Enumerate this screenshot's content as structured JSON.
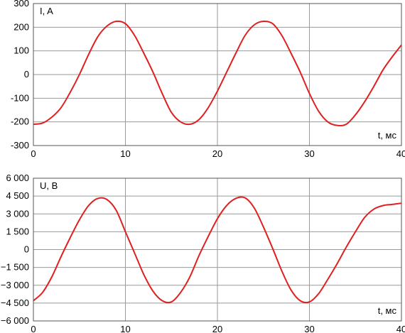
{
  "chart_data": [
    {
      "type": "line",
      "ylabel": "I, A",
      "xlabel": "t, мс",
      "xlim": [
        0,
        40
      ],
      "ylim": [
        -300,
        300
      ],
      "x_ticks": [
        0,
        10,
        20,
        30,
        40
      ],
      "x_tick_labels": [
        "0",
        "10",
        "20",
        "30",
        "40"
      ],
      "y_ticks": [
        300,
        200,
        100,
        0,
        -100,
        -200,
        -300
      ],
      "y_tick_labels": [
        "300",
        "200",
        "100",
        "0",
        "-100",
        "-200",
        "-300"
      ],
      "grid": true,
      "line_color": "#e02020",
      "series": [
        {
          "x": [
            0,
            1,
            2,
            3,
            4,
            5,
            6,
            7,
            8,
            9,
            10,
            11,
            12,
            13,
            14,
            15,
            16,
            17,
            18,
            19,
            20,
            21,
            22,
            23,
            24,
            25,
            26,
            27,
            28,
            29,
            30,
            31,
            32,
            33,
            34,
            35,
            36,
            37,
            38,
            39,
            40
          ],
          "values": [
            -210,
            -205,
            -180,
            -140,
            -75,
            0,
            85,
            160,
            205,
            225,
            215,
            165,
            90,
            10,
            -80,
            -160,
            -200,
            -210,
            -190,
            -140,
            -70,
            10,
            90,
            165,
            210,
            225,
            215,
            165,
            90,
            10,
            -80,
            -155,
            -200,
            -215,
            -210,
            -170,
            -115,
            -50,
            20,
            75,
            125
          ]
        }
      ]
    },
    {
      "type": "line",
      "ylabel": "U, В",
      "xlabel": "t, мс",
      "xlim": [
        0,
        40
      ],
      "ylim": [
        -6000,
        6000
      ],
      "x_ticks": [
        0,
        10,
        20,
        30,
        40
      ],
      "x_tick_labels": [
        "0",
        "10",
        "20",
        "30",
        "40"
      ],
      "y_ticks": [
        6000,
        4500,
        3000,
        1500,
        0,
        -1500,
        -3000,
        -4500,
        -6000
      ],
      "y_tick_labels": [
        "6 000",
        "4 500",
        "3 000",
        "1 500",
        "0",
        "−1 500",
        "−3 000",
        "−4 500",
        "−6 000"
      ],
      "grid": true,
      "line_color": "#e02020",
      "series": [
        {
          "x": [
            0,
            1,
            2,
            3,
            4,
            5,
            6,
            7,
            8,
            9,
            10,
            11,
            12,
            13,
            14,
            15,
            16,
            17,
            18,
            19,
            20,
            21,
            22,
            23,
            24,
            25,
            26,
            27,
            28,
            29,
            30,
            31,
            32,
            33,
            34,
            35,
            36,
            37,
            38,
            39,
            40
          ],
          "values": [
            -4300,
            -3600,
            -2300,
            -600,
            1000,
            2500,
            3700,
            4300,
            4200,
            3300,
            1500,
            -300,
            -2100,
            -3500,
            -4300,
            -4400,
            -3600,
            -2300,
            -500,
            1100,
            2600,
            3700,
            4300,
            4350,
            3500,
            1900,
            100,
            -1800,
            -3400,
            -4300,
            -4400,
            -3700,
            -2500,
            -1200,
            200,
            1500,
            2700,
            3400,
            3700,
            3800,
            3900
          ]
        }
      ]
    }
  ]
}
